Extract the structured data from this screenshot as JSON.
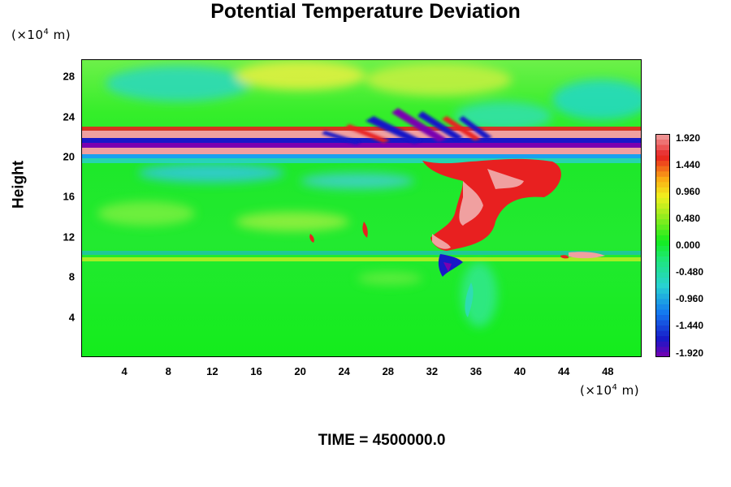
{
  "chart_data": {
    "type": "heatmap",
    "title": "Potential Temperature Deviation",
    "ylabel": "Height",
    "y_unit_prefix": "(×10",
    "y_unit_exp": "4",
    "y_unit_suffix": " m)",
    "x_unit_prefix": "(×10",
    "x_unit_exp": "4",
    "x_unit_suffix": " m)",
    "footer": "TIME = 4500000.0",
    "x_ticks": [
      "4",
      "8",
      "12",
      "16",
      "20",
      "24",
      "28",
      "32",
      "36",
      "40",
      "44",
      "48"
    ],
    "x_tick_values": [
      4,
      8,
      12,
      16,
      20,
      24,
      28,
      32,
      36,
      40,
      44,
      48
    ],
    "y_ticks": [
      "4",
      "8",
      "12",
      "16",
      "20",
      "24",
      "28"
    ],
    "y_tick_values": [
      4,
      8,
      12,
      16,
      20,
      24,
      28
    ],
    "xlim": [
      0,
      51
    ],
    "ylim": [
      0,
      29.7
    ],
    "colorbar": {
      "labels": [
        "1.920",
        "1.440",
        "0.960",
        "0.480",
        "0.000",
        "-0.480",
        "-0.960",
        "-1.440",
        "-1.920"
      ],
      "values": [
        1.92,
        1.44,
        0.96,
        0.48,
        0.0,
        -0.48,
        -0.96,
        -1.44,
        -1.92
      ],
      "range": [
        -2.0,
        2.0
      ]
    },
    "colors": {
      "background_field": "#11ee22",
      "max": "#f0a0a0",
      "min": "#7a00b0"
    }
  }
}
